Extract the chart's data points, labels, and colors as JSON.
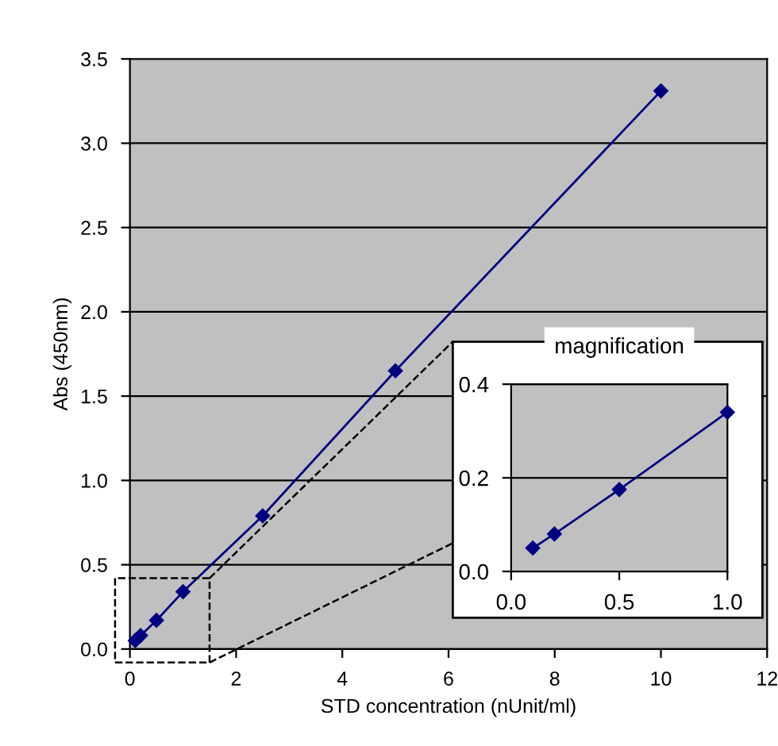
{
  "chart_data": [
    {
      "type": "line",
      "xlabel": "STD concentration (nUnit/ml)",
      "ylabel": "Abs (450nm)",
      "x": [
        0.1,
        0.2,
        0.5,
        1,
        2.5,
        5,
        10
      ],
      "series": [
        {
          "color": "#000080",
          "values": [
            0.05,
            0.08,
            0.17,
            0.34,
            0.79,
            1.65,
            3.31
          ]
        }
      ],
      "xlim": [
        0,
        12
      ],
      "xticks": [
        0,
        2,
        4,
        6,
        8,
        10,
        12
      ],
      "ylim": [
        0,
        3.5
      ],
      "yticks": [
        {
          "value": 0,
          "label": "0.0"
        },
        {
          "value": 0.5,
          "label": "0.5"
        },
        {
          "value": 1,
          "label": "1.0"
        },
        {
          "value": 1.5,
          "label": "1.5"
        },
        {
          "value": 2,
          "label": "2.0"
        },
        {
          "value": 2.5,
          "label": "2.5"
        },
        {
          "value": 3,
          "label": "3.0"
        },
        {
          "value": 3.5,
          "label": "3.5"
        }
      ],
      "grid": "y",
      "marker": "diamond",
      "line_style": "solid",
      "legend": false
    },
    {
      "type": "line",
      "title": "magnification",
      "x": [
        0.1,
        0.2,
        0.5,
        1
      ],
      "series": [
        {
          "color": "#000080",
          "values": [
            0.05,
            0.08,
            0.175,
            0.34
          ]
        }
      ],
      "xlim": [
        0,
        1
      ],
      "xticks": [
        {
          "value": 0,
          "label": "0.0"
        },
        {
          "value": 0.5,
          "label": "0.5"
        },
        {
          "value": 1,
          "label": "1.0"
        }
      ],
      "ylim": [
        0,
        0.4
      ],
      "yticks": [
        {
          "value": 0,
          "label": "0.0"
        },
        {
          "value": 0.2,
          "label": "0.2"
        },
        {
          "value": 0.4,
          "label": "0.4"
        }
      ],
      "grid": "y",
      "marker": "diamond",
      "line_style": "solid",
      "legend": false
    }
  ]
}
